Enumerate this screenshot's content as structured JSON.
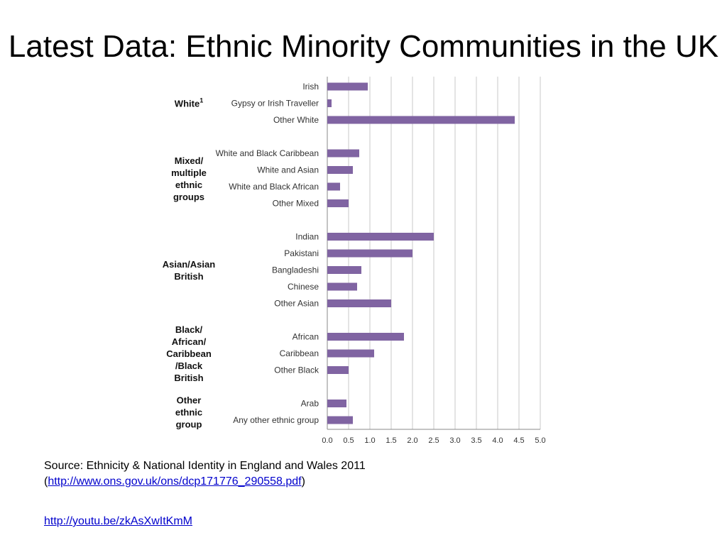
{
  "slide": {
    "title": "Latest Data: Ethnic Minority Communities in the UK"
  },
  "chart_data": {
    "type": "bar",
    "orientation": "horizontal",
    "xlim": [
      0,
      5
    ],
    "xticks": [
      "0.0",
      "0.5",
      "1.0",
      "1.5",
      "2.0",
      "2.5",
      "3.0",
      "3.5",
      "4.0",
      "4.5",
      "5.0"
    ],
    "grid": true,
    "bar_color": "#8064a2",
    "groups": [
      {
        "lines": [
          "White"
        ],
        "superscript": "1",
        "categories": [
          {
            "label": "Irish",
            "value": 0.95
          },
          {
            "label": "Gypsy or Irish Traveller",
            "value": 0.1
          },
          {
            "label": "Other White",
            "value": 4.4
          }
        ]
      },
      {
        "lines": [
          "Mixed/",
          "multiple",
          "ethnic",
          "groups"
        ],
        "categories": [
          {
            "label": "White and Black Caribbean",
            "value": 0.75
          },
          {
            "label": "White and Asian",
            "value": 0.6
          },
          {
            "label": "White and Black African",
            "value": 0.3
          },
          {
            "label": "Other Mixed",
            "value": 0.5
          }
        ]
      },
      {
        "lines": [
          "Asian/Asian",
          "British"
        ],
        "categories": [
          {
            "label": "Indian",
            "value": 2.5
          },
          {
            "label": "Pakistani",
            "value": 2.0
          },
          {
            "label": "Bangladeshi",
            "value": 0.8
          },
          {
            "label": "Chinese",
            "value": 0.7
          },
          {
            "label": "Other Asian",
            "value": 1.5
          }
        ]
      },
      {
        "lines": [
          "Black/",
          "African/",
          "Caribbean",
          "/Black",
          "British"
        ],
        "categories": [
          {
            "label": "African",
            "value": 1.8
          },
          {
            "label": "Caribbean",
            "value": 1.1
          },
          {
            "label": "Other Black",
            "value": 0.5
          }
        ]
      },
      {
        "lines": [
          "Other",
          "ethnic",
          "group"
        ],
        "categories": [
          {
            "label": "Arab",
            "value": 0.45
          },
          {
            "label": "Any other ethnic group",
            "value": 0.6
          }
        ]
      }
    ]
  },
  "source": {
    "text": "Source: Ethnicity & National Identity in England and Wales 2011",
    "open_paren": "(",
    "link": "http://www.ons.gov.uk/ons/dcp171776_290558.pdf",
    "close_paren": ")"
  },
  "video_link": "http://youtu.be/zkAsXwItKmM"
}
